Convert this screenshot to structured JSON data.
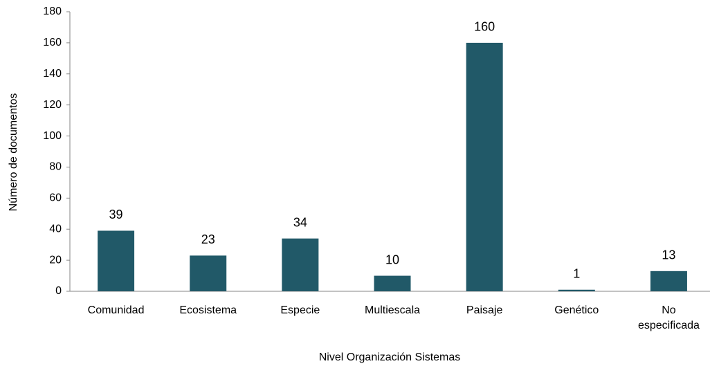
{
  "chart_data": {
    "type": "bar",
    "x_label": "Nivel Organización Sistemas",
    "y_label": "Número de documentos",
    "categories": [
      "Comunidad",
      "Ecosistema",
      "Especie",
      "Multiescala",
      "Paisaje",
      "Genético",
      "No especificada"
    ],
    "values": [
      39,
      23,
      34,
      10,
      160,
      1,
      13
    ],
    "color": "#215968",
    "ylim": [
      0,
      180
    ],
    "yticks": [
      0,
      20,
      40,
      60,
      80,
      100,
      120,
      140,
      160,
      180
    ],
    "grid": false
  }
}
